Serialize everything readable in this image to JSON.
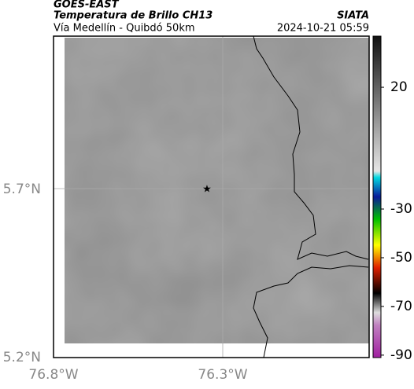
{
  "header": {
    "satellite": "GOES-EAST",
    "product": "Temperatura de Brillo CH13",
    "source": "SIATA",
    "region": "Vía Medellín - Quibdó 50km",
    "timestamp": "2024-10-21 05:59"
  },
  "axes": {
    "lat_labels": [
      "5.7°N",
      "5.2°N"
    ],
    "lon_labels": [
      "76.8°W",
      "76.3°W"
    ]
  },
  "colorbar": {
    "lim": [
      -91,
      41
    ],
    "ticks": [
      20,
      -30,
      -50,
      -70,
      -90
    ]
  }
}
